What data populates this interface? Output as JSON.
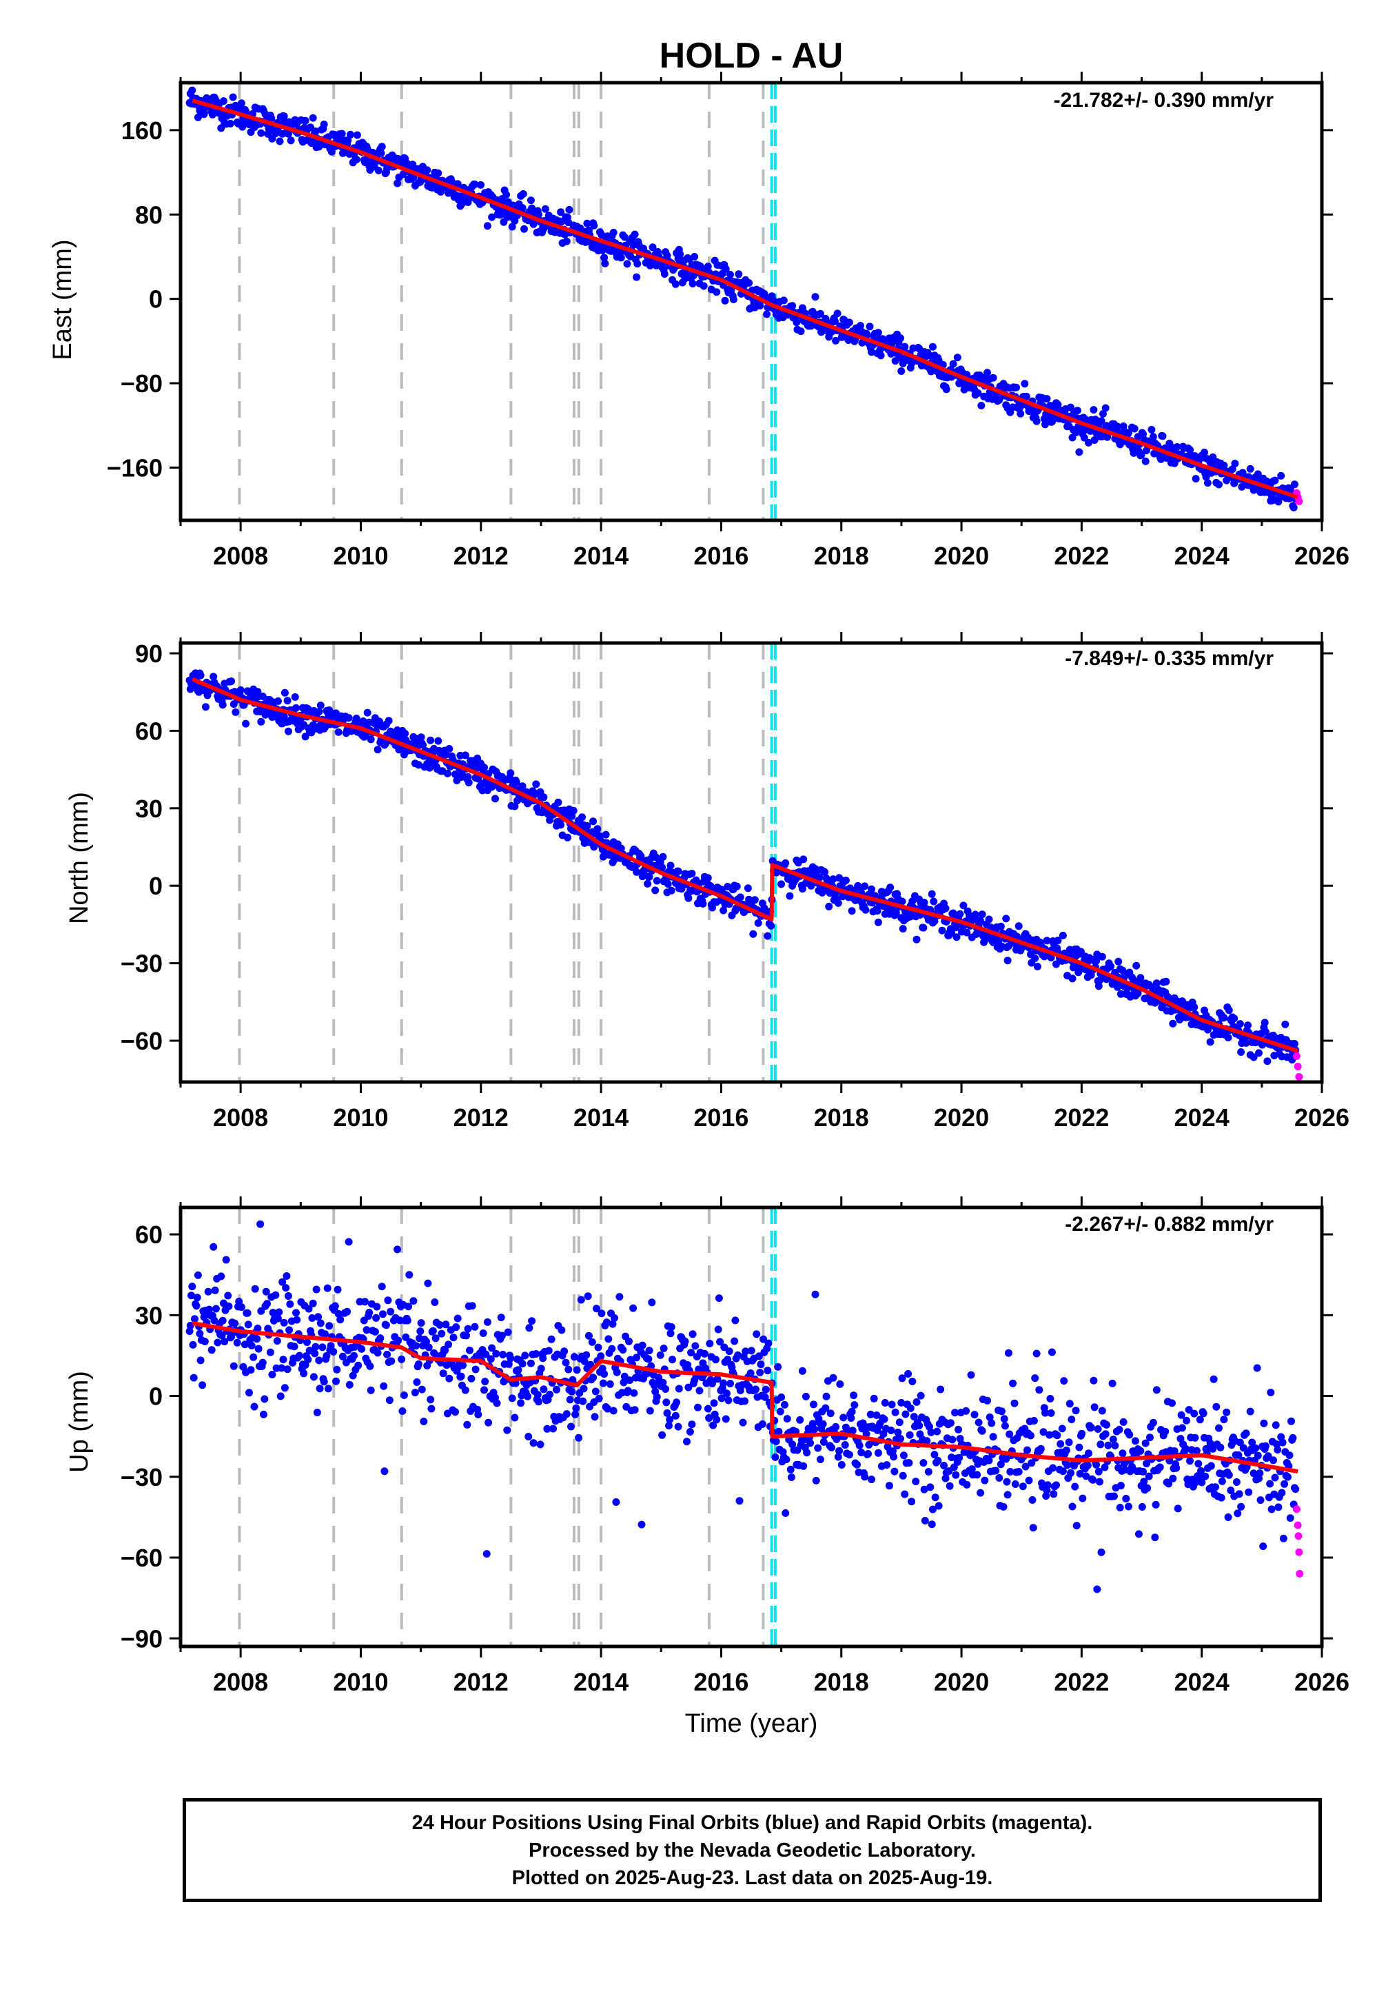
{
  "title": "HOLD - AU",
  "colors": {
    "final_orbits": "#0000ff",
    "rapid_orbits": "#ff00ff",
    "model_fit": "#ff0000",
    "event_line": "#bbbbbb",
    "antenna_change_line": "#00e5ee"
  },
  "caption": {
    "line1": "24 Hour Positions Using Final Orbits (blue) and Rapid Orbits (magenta).",
    "line2": "Processed by the Nevada Geodetic Laboratory.",
    "line3": "Plotted on 2025-Aug-23. Last data on 2025-Aug-19."
  },
  "chart_data": [
    {
      "type": "scatter",
      "component": "east",
      "ylabel": "East (mm)",
      "xlabel": "",
      "rate_label": "-21.782+/- 0.390 mm/yr",
      "xlim": [
        2007.0,
        2026.0
      ],
      "ylim": [
        -210,
        205
      ],
      "xticks": [
        2008,
        2010,
        2012,
        2014,
        2016,
        2018,
        2020,
        2022,
        2024,
        2026
      ],
      "yticks": [
        -160,
        -80,
        0,
        80,
        160
      ],
      "ytick_labels": [
        "−160",
        "−80",
        "0",
        "80",
        "160"
      ],
      "data_start": 2007.15,
      "last_final": 2025.56,
      "rapid_end": 2025.63,
      "event_lines": [
        2007.98,
        2009.55,
        2010.68,
        2012.5,
        2013.55,
        2013.63,
        2014.0,
        2015.8,
        2016.7
      ],
      "antenna_change_lines": [
        2016.84,
        2016.9
      ],
      "fit_series": {
        "x": [
          2007.2,
          2008.0,
          2009.0,
          2010.0,
          2011.0,
          2012.0,
          2013.0,
          2014.0,
          2015.0,
          2016.0,
          2016.85,
          2018.0,
          2019.0,
          2020.0,
          2021.0,
          2022.0,
          2023.0,
          2024.0,
          2025.6
        ],
        "y": [
          188,
          175,
          158,
          139,
          117,
          96,
          74,
          55,
          37,
          18,
          -6,
          -30,
          -50,
          -74,
          -96,
          -118,
          -137,
          -158,
          -188
        ]
      },
      "rapid_points": {
        "x": [
          2025.58,
          2025.6,
          2025.62
        ],
        "y": [
          -184,
          -188,
          -192
        ]
      },
      "noise": 7
    },
    {
      "type": "scatter",
      "component": "north",
      "ylabel": "North (mm)",
      "xlabel": "",
      "rate_label": "-7.849+/- 0.335 mm/yr",
      "xlim": [
        2007.0,
        2026.0
      ],
      "ylim": [
        -76,
        94
      ],
      "xticks": [
        2008,
        2010,
        2012,
        2014,
        2016,
        2018,
        2020,
        2022,
        2024,
        2026
      ],
      "yticks": [
        -60,
        -30,
        0,
        30,
        60,
        90
      ],
      "ytick_labels": [
        "−60",
        "−30",
        "0",
        "30",
        "60",
        "90"
      ],
      "data_start": 2007.15,
      "last_final": 2025.56,
      "rapid_end": 2025.63,
      "event_lines": [
        2007.98,
        2009.55,
        2010.68,
        2012.5,
        2013.55,
        2013.63,
        2014.0,
        2015.8,
        2016.7
      ],
      "antenna_change_lines": [
        2016.84,
        2016.9
      ],
      "fit_series": {
        "x": [
          2007.2,
          2008.0,
          2009.0,
          2010.0,
          2011.0,
          2012.0,
          2013.0,
          2014.0,
          2015.0,
          2016.0,
          2016.84,
          2016.85,
          2018.0,
          2019.0,
          2020.0,
          2021.0,
          2022.0,
          2023.0,
          2024.0,
          2025.6
        ],
        "y": [
          80,
          72,
          66,
          61,
          52,
          43,
          32,
          16,
          5,
          -4,
          -13,
          8,
          -2,
          -8,
          -14,
          -22,
          -30,
          -40,
          -52,
          -64
        ]
      },
      "rapid_points": {
        "x": [
          2025.58,
          2025.6,
          2025.62
        ],
        "y": [
          -66,
          -70,
          -74
        ]
      },
      "noise": 3
    },
    {
      "type": "scatter",
      "component": "up",
      "ylabel": "Up (mm)",
      "xlabel": "Time (year)",
      "rate_label": "-2.267+/- 0.882 mm/yr",
      "xlim": [
        2007.0,
        2026.0
      ],
      "ylim": [
        -93,
        70
      ],
      "xticks": [
        2008,
        2010,
        2012,
        2014,
        2016,
        2018,
        2020,
        2022,
        2024,
        2026
      ],
      "yticks": [
        -90,
        -60,
        -30,
        0,
        30,
        60
      ],
      "ytick_labels": [
        "−90",
        "−60",
        "−30",
        "0",
        "30",
        "60"
      ],
      "data_start": 2007.15,
      "last_final": 2025.56,
      "rapid_end": 2025.63,
      "event_lines": [
        2007.98,
        2009.55,
        2010.68,
        2012.5,
        2013.55,
        2013.63,
        2014.0,
        2015.8,
        2016.7
      ],
      "antenna_change_lines": [
        2016.84,
        2016.9
      ],
      "fit_series": {
        "x": [
          2007.2,
          2008.0,
          2009.0,
          2010.0,
          2010.68,
          2011.0,
          2012.0,
          2012.5,
          2013.0,
          2013.6,
          2014.0,
          2015.0,
          2016.0,
          2016.84,
          2016.85,
          2018.0,
          2019.0,
          2020.0,
          2021.0,
          2022.0,
          2023.0,
          2024.0,
          2025.6
        ],
        "y": [
          27,
          24,
          22,
          20,
          18,
          14,
          13,
          6,
          7,
          4,
          13,
          9,
          8,
          5,
          -15,
          -14,
          -18,
          -19,
          -22,
          -24,
          -23,
          -22,
          -28
        ]
      },
      "rapid_points": {
        "x": [
          2025.58,
          2025.6,
          2025.61,
          2025.62,
          2025.63
        ],
        "y": [
          -42,
          -48,
          -52,
          -58,
          -66
        ]
      },
      "noise": 10
    }
  ]
}
